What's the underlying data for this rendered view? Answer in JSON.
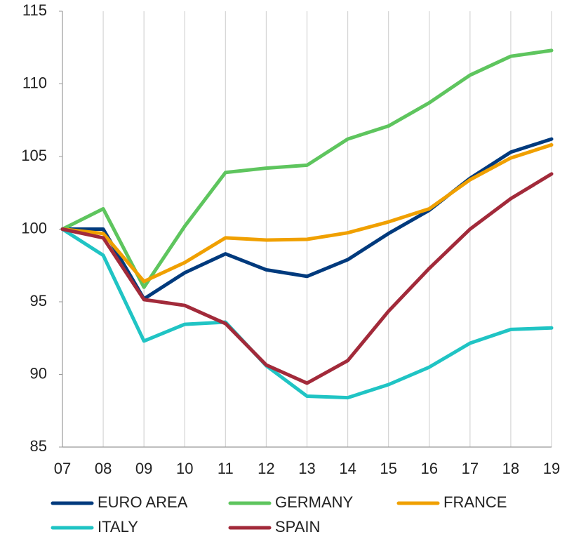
{
  "chart_data": {
    "type": "line",
    "categories": [
      "07",
      "08",
      "09",
      "10",
      "11",
      "12",
      "13",
      "14",
      "15",
      "16",
      "17",
      "18",
      "19"
    ],
    "series": [
      {
        "name": "EURO AREA",
        "color": "#003a7d",
        "values": [
          100,
          100,
          95.2,
          97.0,
          98.3,
          97.2,
          96.75,
          97.9,
          99.7,
          101.3,
          103.5,
          105.3,
          106.2
        ]
      },
      {
        "name": "GERMANY",
        "color": "#5ec55e",
        "values": [
          100,
          101.4,
          96.0,
          100.2,
          103.9,
          104.2,
          104.4,
          106.2,
          107.1,
          108.7,
          110.6,
          111.9,
          112.3
        ]
      },
      {
        "name": "FRANCE",
        "color": "#f0a000",
        "values": [
          100,
          99.7,
          96.4,
          97.7,
          99.4,
          99.25,
          99.3,
          99.75,
          100.5,
          101.4,
          103.4,
          104.9,
          105.8
        ]
      },
      {
        "name": "ITALY",
        "color": "#20c4c4",
        "values": [
          100,
          98.2,
          92.3,
          93.45,
          93.6,
          90.6,
          88.5,
          88.4,
          89.3,
          90.5,
          92.15,
          93.1,
          93.2
        ]
      },
      {
        "name": "SPAIN",
        "color": "#a22a3a",
        "values": [
          100,
          99.4,
          95.15,
          94.75,
          93.5,
          90.65,
          89.4,
          90.95,
          94.35,
          97.3,
          100.0,
          102.1,
          103.8
        ]
      }
    ],
    "ylim": [
      85,
      115
    ],
    "yticks": [
      85,
      90,
      95,
      100,
      105,
      110,
      115
    ],
    "grid": "vertical",
    "legend": "bottom"
  }
}
